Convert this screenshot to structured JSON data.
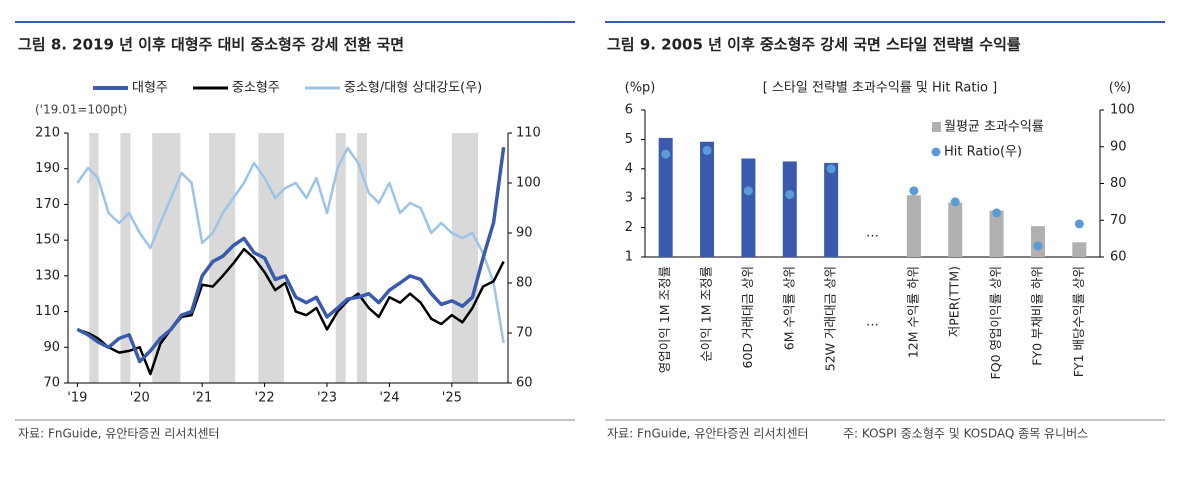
{
  "chart_data": [
    {
      "type": "line",
      "title": "그림 8. 2019 년 이후 대형주 대비 중소형주 강세 전환 국면",
      "unit_label": "('19.01=100pt)",
      "source": "자료: FnGuide, 유안타증권 리서치센터",
      "x": [
        2019.0,
        2019.17,
        2019.33,
        2019.5,
        2019.67,
        2019.83,
        2020.0,
        2020.17,
        2020.33,
        2020.5,
        2020.67,
        2020.83,
        2021.0,
        2021.17,
        2021.33,
        2021.5,
        2021.67,
        2021.83,
        2022.0,
        2022.17,
        2022.33,
        2022.5,
        2022.67,
        2022.83,
        2023.0,
        2023.17,
        2023.33,
        2023.5,
        2023.67,
        2023.83,
        2024.0,
        2024.17,
        2024.33,
        2024.5,
        2024.67,
        2024.83,
        2025.0,
        2025.17,
        2025.33,
        2025.5,
        2025.67,
        2025.83
      ],
      "series": [
        {
          "name": "대형주",
          "color": "#3a5bad",
          "axis": "y",
          "values": [
            100,
            97,
            93,
            90,
            95,
            97,
            82,
            88,
            95,
            100,
            108,
            110,
            130,
            138,
            141,
            147,
            151,
            143,
            140,
            128,
            130,
            118,
            115,
            118,
            107,
            112,
            117,
            118,
            120,
            115,
            122,
            126,
            130,
            128,
            120,
            114,
            116,
            113,
            118,
            140,
            160,
            202
          ]
        },
        {
          "name": "중소형주",
          "color": "#000000",
          "axis": "y",
          "values": [
            100,
            98,
            95,
            90,
            87,
            88,
            90,
            75,
            92,
            100,
            107,
            108,
            125,
            124,
            130,
            137,
            145,
            140,
            132,
            122,
            126,
            110,
            108,
            112,
            100,
            110,
            116,
            120,
            112,
            107,
            118,
            115,
            120,
            115,
            106,
            103,
            108,
            104,
            112,
            124,
            127,
            138
          ]
        },
        {
          "name": "중소형/대형 상대강도(우)",
          "color": "#9dc3e6",
          "axis": "y2",
          "values": [
            100,
            103,
            101,
            94,
            92,
            94,
            90,
            87,
            92,
            97,
            102,
            100,
            88,
            90,
            94,
            97,
            100,
            104,
            101,
            97,
            99,
            100,
            97,
            101,
            94,
            103,
            107,
            104,
            98,
            96,
            100,
            94,
            96,
            95,
            90,
            92,
            90,
            89,
            90,
            86,
            80,
            68
          ]
        }
      ],
      "shaded_periods": [
        [
          2019.19,
          2019.34
        ],
        [
          2019.69,
          2019.85
        ],
        [
          2020.2,
          2020.65
        ],
        [
          2021.11,
          2021.53
        ],
        [
          2021.9,
          2022.31
        ],
        [
          2023.14,
          2023.3
        ],
        [
          2023.48,
          2023.64
        ],
        [
          2025.0,
          2025.42
        ]
      ],
      "xlim": [
        2018.85,
        2025.9
      ],
      "xticks": [
        {
          "value": 2019,
          "label": "'19"
        },
        {
          "value": 2020,
          "label": "'20"
        },
        {
          "value": 2021,
          "label": "'21"
        },
        {
          "value": 2022,
          "label": "'22"
        },
        {
          "value": 2023,
          "label": "'23"
        },
        {
          "value": 2024,
          "label": "'24"
        },
        {
          "value": 2025,
          "label": "'25"
        }
      ],
      "ylim": [
        70,
        210
      ],
      "yticks": [
        70,
        90,
        110,
        130,
        150,
        170,
        190,
        210
      ],
      "y2lim": [
        60,
        110
      ],
      "y2ticks": [
        60,
        70,
        80,
        90,
        100,
        110
      ],
      "legend": "top"
    },
    {
      "type": "bar",
      "title": "그림 9. 2005 년 이후 중소형주 강세 국면 스타일 전략별 수익률",
      "subtitle": "[ 스타일 전략별 초과수익률 및 Hit Ratio ]",
      "y_unit_label": "(%p)",
      "y2_unit_label": "(%)",
      "gap_label": "…",
      "source": "자료: FnGuide, 유안타증권 리서치센터",
      "note": "주: KOSPI 중소형주 및 KOSDAQ 종목 유니버스",
      "categories": [
        "영업이익 1M 조정률",
        "순이익 1M 조정률",
        "60D 거래대금 상위",
        "6M 수익률 상위",
        "52W 거래대금 상위",
        null,
        "12M 수익률 하위",
        "저PER(TTM)",
        "FQ0 영업이익률 상위",
        "FY0 부채비율 하위",
        "FY1 배당수익률 상위"
      ],
      "series": [
        {
          "name": "월평균 초과수익률",
          "type": "bar",
          "axis": "y",
          "color": "#b0b0b0",
          "colors": [
            "#3a5bad",
            "#3a5bad",
            "#3a5bad",
            "#3a5bad",
            "#3a5bad",
            null,
            "#b0b0b0",
            "#b0b0b0",
            "#b0b0b0",
            "#b0b0b0",
            "#b0b0b0"
          ],
          "values": [
            5.05,
            4.92,
            4.35,
            4.25,
            4.2,
            null,
            3.1,
            2.85,
            2.58,
            2.05,
            1.5
          ]
        },
        {
          "name": "Hit Ratio(우)",
          "type": "scatter",
          "axis": "y2",
          "color": "#5b9bd5",
          "values": [
            88,
            89,
            78,
            77,
            84,
            null,
            78,
            75,
            72,
            63,
            69
          ]
        }
      ],
      "ylim": [
        1,
        6
      ],
      "yticks": [
        1,
        2,
        3,
        4,
        5,
        6
      ],
      "y2lim": [
        60,
        100
      ],
      "y2ticks": [
        60,
        70,
        80,
        90,
        100
      ],
      "legend": "upper right"
    }
  ]
}
